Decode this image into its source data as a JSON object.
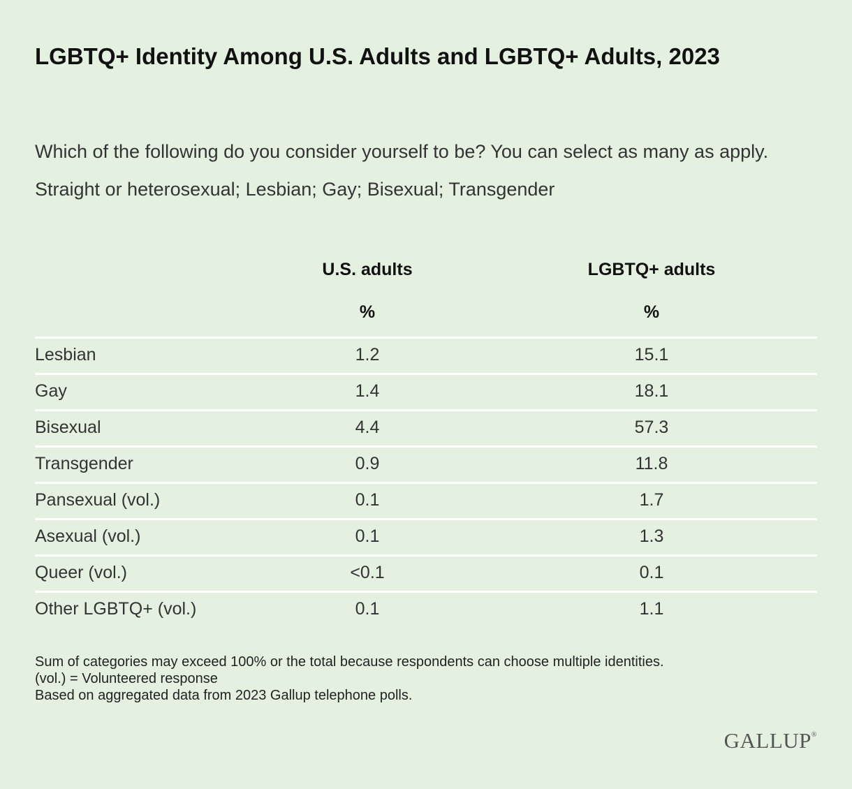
{
  "chart_data": {
    "type": "table",
    "title": "LGBTQ+ Identity Among U.S. Adults and LGBTQ+ Adults, 2023",
    "subtitle": "Which of the following do you consider yourself to be? You can select as many as apply. Straight or heterosexual; Lesbian; Gay; Bisexual; Transgender",
    "columns": [
      "U.S. adults",
      "LGBTQ+ adults"
    ],
    "units": [
      "%",
      "%"
    ],
    "rows": [
      {
        "label": "Lesbian",
        "us_adults": "1.2",
        "lgbtq_adults": "15.1"
      },
      {
        "label": "Gay",
        "us_adults": "1.4",
        "lgbtq_adults": "18.1"
      },
      {
        "label": "Bisexual",
        "us_adults": "4.4",
        "lgbtq_adults": "57.3"
      },
      {
        "label": "Transgender",
        "us_adults": "0.9",
        "lgbtq_adults": "11.8"
      },
      {
        "label": "Pansexual (vol.)",
        "us_adults": "0.1",
        "lgbtq_adults": "1.7"
      },
      {
        "label": "Asexual (vol.)",
        "us_adults": "0.1",
        "lgbtq_adults": "1.3"
      },
      {
        "label": "Queer (vol.)",
        "us_adults": "<0.1",
        "lgbtq_adults": "0.1"
      },
      {
        "label": "Other LGBTQ+ (vol.)",
        "us_adults": "0.1",
        "lgbtq_adults": "1.1"
      }
    ],
    "notes": [
      "Sum of categories may exceed 100% or the total because respondents can choose multiple identities.",
      "(vol.) = Volunteered response",
      "Based on aggregated data from 2023 Gallup telephone polls."
    ]
  },
  "logo": {
    "text": "GALLUP",
    "mark": "®"
  },
  "colors": {
    "background": "#e4f1e1",
    "divider": "#ffffff",
    "text": "#333333",
    "heading": "#111111"
  }
}
